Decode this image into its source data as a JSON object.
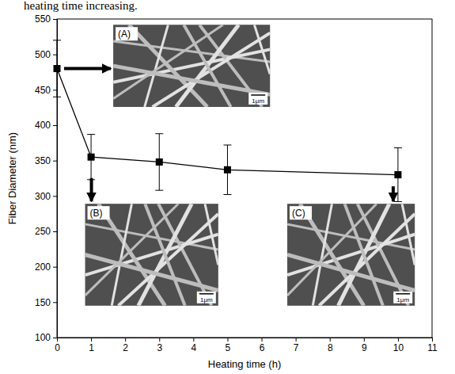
{
  "chart_data": {
    "type": "line",
    "title": "heating time increasing.",
    "x_label": "Heating time (h)",
    "y_label": "Fiber Diameter (nm)",
    "x": [
      0,
      1,
      3,
      5,
      10
    ],
    "values": [
      480,
      355,
      348,
      337,
      330
    ],
    "errors": [
      40,
      32,
      40,
      35,
      38
    ],
    "color": "#000000",
    "marker": "square",
    "line_style": "solid",
    "grid": false,
    "xlim": [
      0,
      11
    ],
    "xticks": [
      0,
      1,
      2,
      3,
      4,
      5,
      6,
      7,
      8,
      9,
      10,
      11
    ],
    "ylim": [
      100,
      550
    ],
    "yticks": [
      100,
      150,
      200,
      250,
      300,
      350,
      400,
      450,
      500,
      550
    ],
    "insets": [
      {
        "label": "(A)",
        "x": 0,
        "scale_bar": "1μm"
      },
      {
        "label": "(B)",
        "x": 1,
        "scale_bar": "1μm"
      },
      {
        "label": "(C)",
        "x": 10,
        "scale_bar": "1μm"
      }
    ]
  }
}
